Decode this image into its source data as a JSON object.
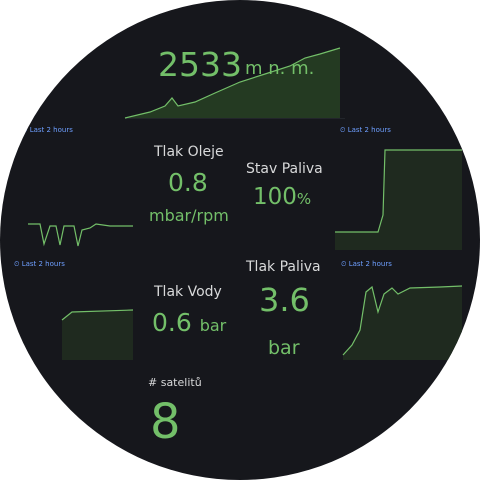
{
  "altitude": {
    "value": 2533,
    "unit": "m n. m."
  },
  "time_ranges": [
    "Last 2 hours",
    "Last 2 hours",
    "Last 2 hours",
    "Last 2 hours"
  ],
  "oil_pressure": {
    "label": "Tlak Oleje",
    "value": 0.8,
    "unit": "mbar/rpm"
  },
  "fuel_level": {
    "label": "Stav Paliva",
    "value": 100,
    "unit": "%"
  },
  "water_pressure": {
    "label": "Tlak Vody",
    "value": 0.6,
    "unit": "bar"
  },
  "fuel_pressure": {
    "label": "Tlak Paliva",
    "value": 3.6,
    "unit": "bar"
  },
  "satellites": {
    "label": "# satelitů",
    "value": 8
  }
}
